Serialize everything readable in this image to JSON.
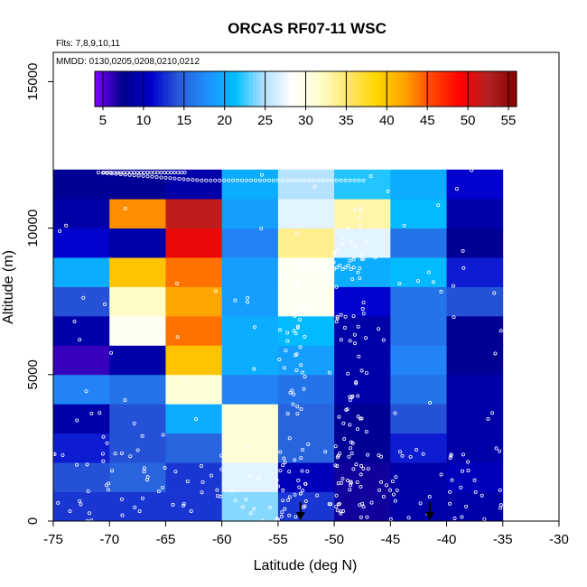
{
  "chart_data": {
    "type": "heatmap",
    "title": "ORCAS RF07-11 WSC",
    "annotations": [
      "Flts: 7,8,9,10,11",
      "MMDD: 0130,0205,0208,0210,0212"
    ],
    "xlabel": "Latitude (deg N)",
    "ylabel": "Altitude (m)",
    "xlim": [
      -75,
      -30
    ],
    "ylim": [
      0,
      16000
    ],
    "x_ticks": [
      -75,
      -70,
      -65,
      -60,
      -55,
      -50,
      -45,
      -40,
      -35,
      -30
    ],
    "y_ticks": [
      0,
      5000,
      10000,
      15000
    ],
    "colorbar": {
      "range": [
        4,
        56
      ],
      "ticks": [
        5,
        10,
        15,
        20,
        25,
        30,
        35,
        40,
        45,
        50,
        55
      ],
      "colors": [
        "#7f00ff",
        "#00008b",
        "#0000cd",
        "#2a5bd7",
        "#1e90ff",
        "#00bfff",
        "#b0e0ff",
        "#ffffff",
        "#ffffcc",
        "#ffe66e",
        "#ffd700",
        "#ffa500",
        "#ff4500",
        "#ff0000",
        "#b22222",
        "#8b0000"
      ]
    },
    "lat_bins": [
      -75,
      -70,
      -65,
      -60,
      -55,
      -50,
      -45,
      -40,
      -35
    ],
    "alt_bins": [
      0,
      1000,
      2000,
      3000,
      4000,
      5000,
      6000,
      7000,
      8000,
      9000,
      10000,
      11000,
      12000
    ],
    "values": [
      [
        13,
        13,
        13,
        24,
        13,
        7,
        9,
        9
      ],
      [
        14,
        15,
        13,
        27,
        10,
        7,
        9,
        10
      ],
      [
        12,
        14,
        15,
        31,
        15,
        8,
        12,
        9
      ],
      [
        9,
        14,
        20,
        31,
        15,
        8,
        14,
        9
      ],
      [
        17,
        16,
        31,
        17,
        16,
        9,
        16,
        9
      ],
      [
        6,
        9,
        40,
        20,
        19,
        9,
        17,
        8
      ],
      [
        9,
        29,
        44,
        20,
        21,
        9,
        16,
        8
      ],
      [
        14,
        32,
        42,
        19,
        29,
        11,
        16,
        14
      ],
      [
        20,
        40,
        44,
        19,
        29,
        20,
        21,
        12
      ],
      [
        11,
        9,
        50,
        17,
        34,
        27,
        16,
        8
      ],
      [
        9,
        43,
        52,
        19,
        27,
        33,
        21,
        9
      ],
      [
        8,
        8,
        9,
        20,
        25,
        22,
        20,
        11
      ]
    ],
    "arrows_at_lat": [
      -53,
      -41.5
    ]
  }
}
